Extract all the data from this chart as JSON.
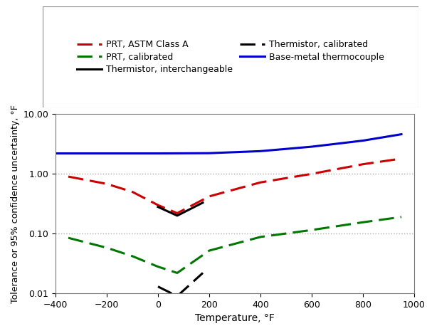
{
  "xlabel": "Temperature, °F",
  "ylabel": "Tolerance or 95% confidence uncertainty, °F",
  "xlim": [
    -400,
    1000
  ],
  "ylim_log": [
    0.01,
    10.0
  ],
  "background_color": "#ffffff",
  "series": [
    {
      "label": "PRT, ASTM Class A",
      "color": "#cc0000",
      "linestyle": "dashed",
      "linewidth": 2.2,
      "x": [
        -350,
        -200,
        -100,
        0,
        75,
        200,
        400,
        600,
        800,
        950
      ],
      "y": [
        0.9,
        0.68,
        0.5,
        0.3,
        0.22,
        0.42,
        0.72,
        1.0,
        1.45,
        1.8
      ]
    },
    {
      "label": "PRT, calibrated",
      "color": "#007700",
      "linestyle": "dashed",
      "linewidth": 2.2,
      "x": [
        -350,
        -200,
        -100,
        0,
        75,
        200,
        400,
        600,
        800,
        950
      ],
      "y": [
        0.085,
        0.058,
        0.042,
        0.028,
        0.022,
        0.052,
        0.088,
        0.115,
        0.155,
        0.19
      ]
    },
    {
      "label": "Thermistor, interchangeable",
      "color": "#000000",
      "linestyle": "solid",
      "linewidth": 2.2,
      "x": [
        0,
        75,
        175
      ],
      "y": [
        0.28,
        0.2,
        0.33
      ]
    },
    {
      "label": "Thermistor, calibrated",
      "color": "#000000",
      "linestyle": "dashed",
      "linewidth": 2.2,
      "x": [
        0,
        75,
        175
      ],
      "y": [
        0.013,
        0.009,
        0.022
      ]
    },
    {
      "label": "Base-metal thermocouple",
      "color": "#0000cc",
      "linestyle": "solid",
      "linewidth": 2.2,
      "x": [
        -400,
        -200,
        0,
        200,
        400,
        600,
        700,
        800,
        950
      ],
      "y": [
        2.2,
        2.2,
        2.2,
        2.22,
        2.4,
        2.85,
        3.2,
        3.6,
        4.6
      ]
    }
  ],
  "legend_rows": [
    [
      0,
      1
    ],
    [
      2,
      3
    ],
    [
      4
    ]
  ],
  "yticks": [
    0.01,
    0.1,
    1.0,
    10.0
  ],
  "ytick_labels": [
    "0.01",
    "0.10",
    "1.00",
    "10.00"
  ],
  "xticks": [
    -400,
    -200,
    0,
    200,
    400,
    600,
    800,
    1000
  ],
  "hlines": [
    1.0,
    0.1
  ],
  "hline_color": "#aaaaaa",
  "hline_style": "dotted",
  "legend_fontsize": 9,
  "axis_fontsize": 10,
  "tick_fontsize": 9
}
